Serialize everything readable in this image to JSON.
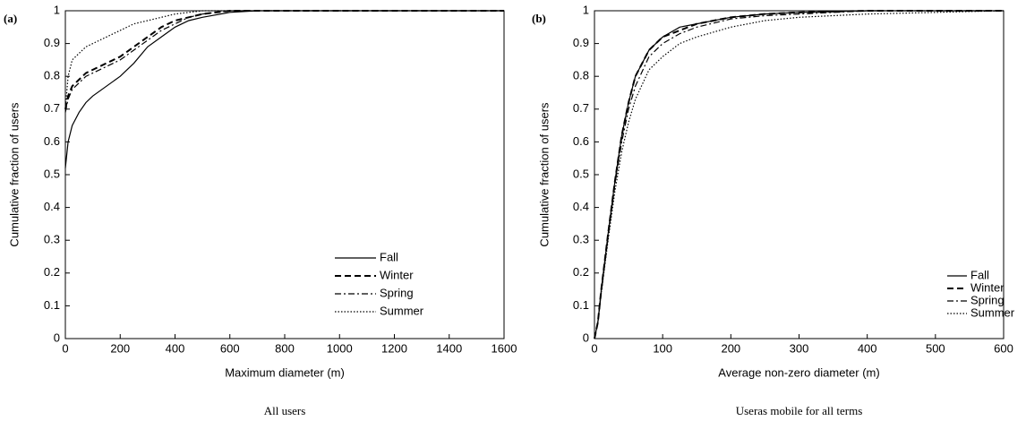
{
  "chart_data": [
    {
      "type": "line",
      "panel_label": "(a)",
      "caption": "All users",
      "x_label": "Maximum diameter (m)",
      "y_label": "Cumulative fraction of users",
      "xlim": [
        0,
        1600
      ],
      "xticks": [
        0,
        200,
        400,
        600,
        800,
        1000,
        1200,
        1400,
        1600
      ],
      "ylim": [
        0,
        1
      ],
      "yticks": [
        0,
        0.1,
        0.2,
        0.3,
        0.4,
        0.5,
        0.6,
        0.7,
        0.8,
        0.9,
        1
      ],
      "legend": "lower right",
      "x": [
        0,
        10,
        25,
        50,
        75,
        100,
        150,
        200,
        250,
        300,
        350,
        400,
        450,
        500,
        600,
        700,
        800,
        1600
      ],
      "series": [
        {
          "name": "Fall",
          "color": "#000000",
          "dash": "solid",
          "values": [
            0.52,
            0.6,
            0.65,
            0.69,
            0.72,
            0.74,
            0.77,
            0.8,
            0.84,
            0.89,
            0.92,
            0.95,
            0.97,
            0.98,
            0.995,
            1,
            1,
            1
          ]
        },
        {
          "name": "Winter",
          "color": "#000000",
          "dash": "dashed",
          "values": [
            0.7,
            0.74,
            0.77,
            0.79,
            0.81,
            0.82,
            0.84,
            0.86,
            0.89,
            0.92,
            0.95,
            0.97,
            0.98,
            0.99,
            1,
            1,
            1,
            1
          ]
        },
        {
          "name": "Spring",
          "color": "#000000",
          "dash": "dashdot",
          "values": [
            0.69,
            0.73,
            0.76,
            0.78,
            0.8,
            0.81,
            0.83,
            0.85,
            0.88,
            0.91,
            0.94,
            0.96,
            0.98,
            0.99,
            1,
            1,
            1,
            1
          ]
        },
        {
          "name": "Summer",
          "color": "#000000",
          "dash": "dotted",
          "values": [
            0.7,
            0.8,
            0.85,
            0.87,
            0.89,
            0.9,
            0.92,
            0.94,
            0.96,
            0.97,
            0.98,
            0.99,
            0.995,
            1,
            1,
            1,
            1,
            1
          ]
        }
      ]
    },
    {
      "type": "line",
      "panel_label": "(b)",
      "caption": "Useras mobile for all terms",
      "x_label": "Average non-zero diameter (m)",
      "y_label": "Cumulative fraction of users",
      "xlim": [
        0,
        600
      ],
      "xticks": [
        0,
        100,
        200,
        300,
        400,
        500,
        600
      ],
      "ylim": [
        0,
        1
      ],
      "yticks": [
        0,
        0.1,
        0.2,
        0.3,
        0.4,
        0.5,
        0.6,
        0.7,
        0.8,
        0.9,
        1
      ],
      "legend": "lower right",
      "x": [
        0,
        5,
        10,
        20,
        30,
        40,
        50,
        60,
        80,
        100,
        125,
        150,
        200,
        250,
        300,
        400,
        500,
        600
      ],
      "series": [
        {
          "name": "Fall",
          "color": "#000000",
          "dash": "solid",
          "values": [
            0,
            0.05,
            0.15,
            0.32,
            0.48,
            0.62,
            0.72,
            0.8,
            0.88,
            0.92,
            0.95,
            0.96,
            0.98,
            0.99,
            0.995,
            1,
            1,
            1
          ]
        },
        {
          "name": "Winter",
          "color": "#000000",
          "dash": "dashed",
          "values": [
            0,
            0.05,
            0.15,
            0.32,
            0.48,
            0.62,
            0.72,
            0.8,
            0.88,
            0.92,
            0.94,
            0.96,
            0.98,
            0.99,
            0.995,
            1,
            1,
            1
          ]
        },
        {
          "name": "Spring",
          "color": "#000000",
          "dash": "dashdot",
          "values": [
            0,
            0.05,
            0.14,
            0.31,
            0.47,
            0.6,
            0.7,
            0.77,
            0.86,
            0.9,
            0.93,
            0.95,
            0.975,
            0.985,
            0.99,
            1,
            1,
            1
          ]
        },
        {
          "name": "Summer",
          "color": "#000000",
          "dash": "dotted",
          "values": [
            0,
            0.05,
            0.14,
            0.3,
            0.45,
            0.57,
            0.66,
            0.73,
            0.82,
            0.86,
            0.9,
            0.92,
            0.95,
            0.97,
            0.98,
            0.99,
            0.995,
            1
          ]
        }
      ]
    }
  ]
}
